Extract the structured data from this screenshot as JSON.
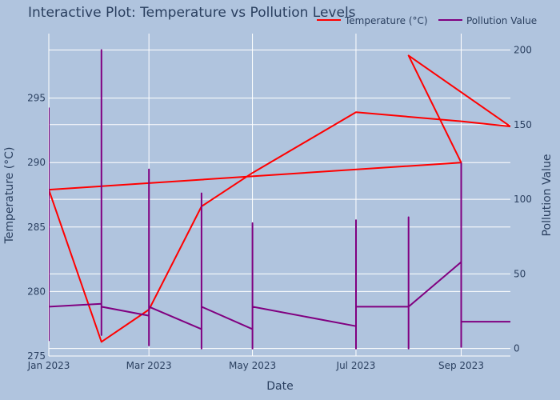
{
  "chart_data": {
    "type": "line",
    "title": "Interactive Plot: Temperature vs Pollution Levels",
    "xlabel": "Date",
    "ylabel_left": "Temperature (°C)",
    "ylabel_right": "Pollution Value",
    "background_color": "#b0c4de",
    "x_range": [
      "2023-01-01",
      "2023-09-30"
    ],
    "x_ticks": [
      {
        "date": "2023-01-01",
        "label": "Jan 2023"
      },
      {
        "date": "2023-03-01",
        "label": "Mar 2023"
      },
      {
        "date": "2023-05-01",
        "label": "May 2023"
      },
      {
        "date": "2023-07-01",
        "label": "Jul 2023"
      },
      {
        "date": "2023-09-01",
        "label": "Sep 2023"
      }
    ],
    "y_left": {
      "range": [
        275,
        300
      ],
      "ticks": [
        275,
        280,
        285,
        290,
        295
      ]
    },
    "y_right": {
      "range": [
        -5,
        211
      ],
      "ticks": [
        0,
        50,
        100,
        150,
        200
      ]
    },
    "legend": {
      "position": "top-right"
    },
    "series": [
      {
        "name": "Temperature (°C)",
        "color": "#ff0000",
        "axis": "left",
        "x": [
          "2023-01-01",
          "2023-02-01",
          "2023-03-01",
          "2023-04-01",
          "2023-05-01",
          "2023-07-01",
          "2023-09-01",
          "2023-09-30",
          "2023-08-01",
          "2023-09-01",
          "2023-01-01"
        ],
        "y": [
          287.9,
          276.1,
          278.6,
          286.6,
          289.2,
          293.9,
          293.2,
          292.8,
          298.3,
          290.0,
          287.9
        ]
      },
      {
        "name": "Pollution Value",
        "color": "#800080",
        "axis": "right",
        "x": [
          "2023-01-01",
          "2023-01-01",
          "2023-01-01",
          "2023-01-01",
          "2023-02-01",
          "2023-02-01",
          "2023-02-01",
          "2023-02-01",
          "2023-03-01",
          "2023-03-01",
          "2023-03-01",
          "2023-03-01",
          "2023-04-01",
          "2023-04-01",
          "2023-04-01",
          "2023-04-01",
          "2023-05-01",
          "2023-05-01",
          "2023-05-01",
          "2023-05-01",
          "2023-07-01",
          "2023-07-01",
          "2023-07-01",
          "2023-07-01",
          "2023-08-01",
          "2023-08-01",
          "2023-08-01",
          "2023-08-01",
          "2023-09-01",
          "2023-09-01",
          "2023-09-01",
          "2023-09-01",
          "2023-09-01",
          "2023-09-30"
        ],
        "y": [
          5,
          161,
          28,
          28,
          30,
          200,
          9,
          28,
          22,
          120,
          2,
          28,
          13,
          104,
          0,
          28,
          13,
          84,
          0,
          28,
          15,
          86,
          0,
          28,
          28,
          88,
          0,
          28,
          58,
          124,
          1,
          28,
          18,
          18
        ]
      }
    ]
  }
}
